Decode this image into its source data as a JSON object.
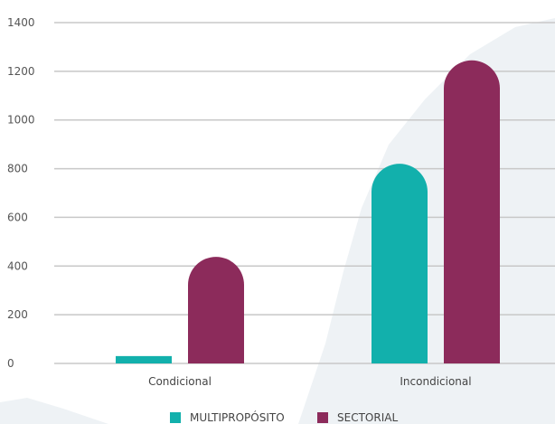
{
  "chart_data": {
    "type": "bar",
    "title": "",
    "xlabel": "",
    "ylabel": "",
    "categories": [
      "Condicional",
      "Incondicional"
    ],
    "series": [
      {
        "name": "MULTIPROPÓSITO",
        "color": "#12b0ac",
        "values": [
          30,
          820
        ]
      },
      {
        "name": "SECTORIAL",
        "color": "#8c2b5b",
        "values": [
          438,
          1245
        ]
      }
    ],
    "ylim": [
      0,
      1400
    ],
    "yticks": [
      0,
      200,
      400,
      600,
      800,
      1000,
      1200,
      1400
    ],
    "grid": true,
    "legend_position": "bottom-center",
    "colors": {
      "grid": "#c8c8c8",
      "background": "#ffffff",
      "map_shape": "#eef2f5"
    }
  }
}
